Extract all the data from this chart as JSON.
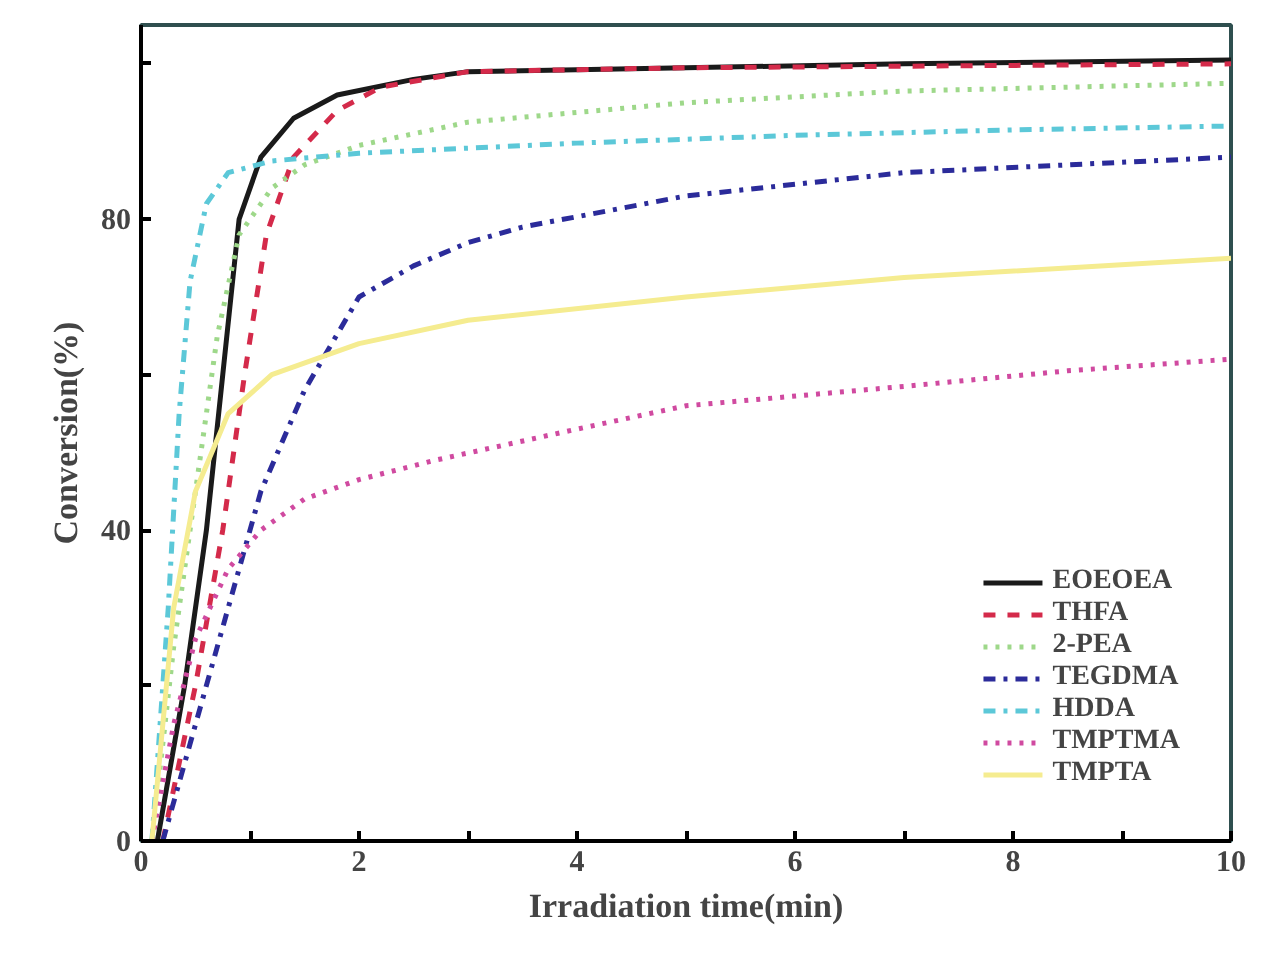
{
  "chart_data": {
    "type": "line",
    "xlabel": "Irradiation time(min)",
    "ylabel": "Conversion(%)",
    "xlim": [
      0,
      10
    ],
    "ylim": [
      0,
      105
    ],
    "xticks": [
      0,
      {
        "value": 1,
        "label": null
      },
      2,
      {
        "value": 3,
        "label": null
      },
      4,
      {
        "value": 5,
        "label": null
      },
      6,
      {
        "value": 7,
        "label": null
      },
      8,
      {
        "value": 9,
        "label": null
      },
      10
    ],
    "yticks": [
      0,
      {
        "value": 20,
        "label": null
      },
      40,
      {
        "value": 60,
        "label": null
      },
      80,
      {
        "value": 100,
        "label": null
      }
    ],
    "grid": false,
    "legend": "bottom right",
    "marker": "none",
    "series": [
      {
        "name": "EOEOEA",
        "color": "#1a1a1a",
        "line_style": "solid",
        "x": [
          0.15,
          0.4,
          0.6,
          0.75,
          0.9,
          1.1,
          1.4,
          1.8,
          2.5,
          3,
          5,
          7,
          10
        ],
        "values": [
          0,
          20,
          40,
          60,
          80,
          88,
          93,
          96,
          98,
          99,
          99.5,
          100,
          100.5
        ]
      },
      {
        "name": "THFA",
        "color": "#d42a4a",
        "line_style": "dashed",
        "x": [
          0.2,
          0.5,
          0.75,
          0.95,
          1.15,
          1.4,
          1.8,
          2.2,
          3,
          5,
          10
        ],
        "values": [
          0,
          20,
          40,
          60,
          78,
          88,
          94,
          97,
          99,
          99.5,
          100
        ]
      },
      {
        "name": "2-PEA",
        "color": "#9ed88a",
        "line_style": "dotted",
        "x": [
          0.1,
          0.3,
          0.5,
          0.7,
          0.9,
          1.2,
          1.5,
          2,
          3,
          5,
          7,
          10
        ],
        "values": [
          0,
          25,
          45,
          65,
          78,
          84,
          87,
          89.5,
          92.5,
          95,
          96.5,
          97.5
        ]
      },
      {
        "name": "TEGDMA",
        "color": "#2b2b9a",
        "line_style": "dashdot",
        "x": [
          0.2,
          0.5,
          0.8,
          1.1,
          1.5,
          2,
          2.5,
          3,
          3.5,
          5,
          7,
          10
        ],
        "values": [
          0,
          15,
          30,
          45,
          58,
          70,
          74,
          77,
          79,
          83,
          86,
          88
        ]
      },
      {
        "name": "HDDA",
        "color": "#5cc8d8",
        "line_style": "dashdot",
        "x": [
          0.1,
          0.25,
          0.35,
          0.45,
          0.6,
          0.8,
          1.2,
          2,
          4,
          6,
          8,
          10
        ],
        "values": [
          0,
          30,
          55,
          72,
          82,
          86,
          87.5,
          88.5,
          89.8,
          90.8,
          91.5,
          92
        ]
      },
      {
        "name": "TMPTMA",
        "color": "#d04aa0",
        "line_style": "dotted",
        "x": [
          0.1,
          0.3,
          0.5,
          0.8,
          1.1,
          1.5,
          2,
          2.7,
          4,
          5,
          7,
          8.5,
          10
        ],
        "values": [
          0,
          15,
          26,
          35,
          40,
          44,
          46.5,
          49,
          53,
          56,
          58.5,
          60.5,
          62
        ]
      },
      {
        "name": "TMPTA",
        "color": "#f5ec90",
        "line_style": "solid",
        "x": [
          0.1,
          0.3,
          0.5,
          0.8,
          1.2,
          2,
          3,
          5,
          7,
          10
        ],
        "values": [
          0,
          30,
          45,
          55,
          60,
          64,
          67,
          70,
          72.5,
          75
        ]
      }
    ]
  }
}
